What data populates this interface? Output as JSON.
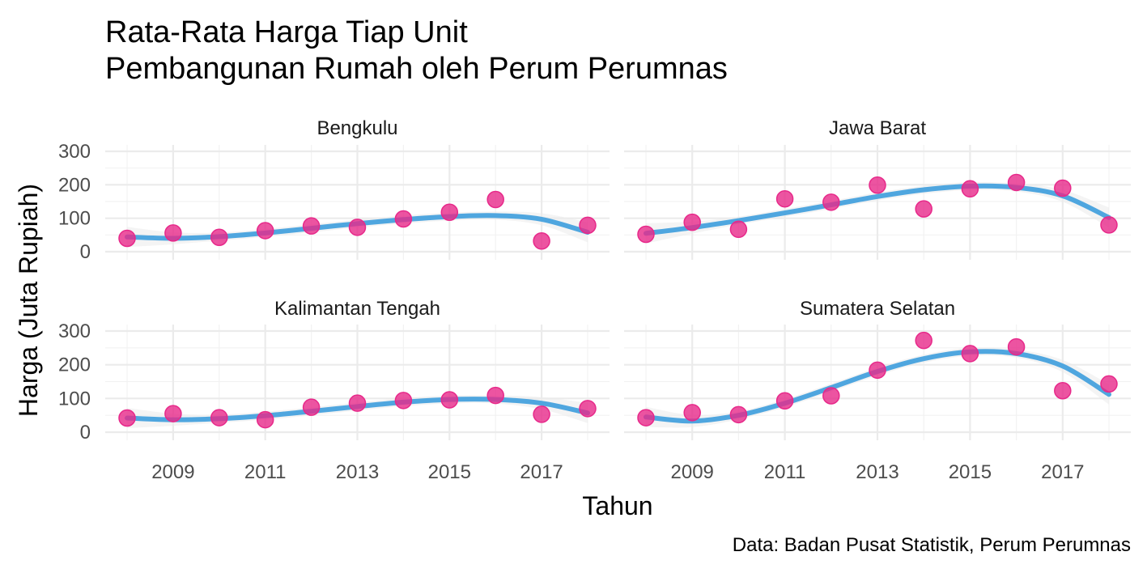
{
  "chart_data": {
    "type": "scatter",
    "title": "Rata-Rata Harga Tiap Unit",
    "subtitle": "Pembangunan Rumah oleh Perum Perumnas",
    "xlabel": "Tahun",
    "ylabel": "Harga (Juta Rupiah)",
    "caption": "Data: Badan Pusat Statistik, Perum Perumnas",
    "xlim": [
      2008,
      2018
    ],
    "ylim": [
      0,
      300
    ],
    "x_ticks": [
      "2009",
      "2011",
      "2013",
      "2015",
      "2017"
    ],
    "y_ticks": [
      "0",
      "100",
      "200",
      "300"
    ],
    "grid": true,
    "point_color": "#e7298a",
    "smooth_color": "#4fa6df",
    "ribbon_color": "#ebebeb",
    "years": [
      2008,
      2009,
      2010,
      2011,
      2012,
      2013,
      2014,
      2015,
      2016,
      2017,
      2018
    ],
    "panels": [
      {
        "name": "Bengkulu",
        "values": [
          40,
          56,
          43,
          63,
          77,
          73,
          98,
          118,
          156,
          32,
          79
        ],
        "smooth": [
          44,
          40,
          45,
          56,
          70,
          84,
          96,
          105,
          108,
          97,
          58
        ]
      },
      {
        "name": "Jawa Barat",
        "values": [
          52,
          88,
          67,
          158,
          148,
          199,
          128,
          188,
          207,
          190,
          80
        ],
        "smooth": [
          55,
          72,
          93,
          116,
          140,
          165,
          185,
          196,
          192,
          167,
          102
        ]
      },
      {
        "name": "Kalimantan Tengah",
        "values": [
          42,
          55,
          43,
          37,
          74,
          86,
          94,
          96,
          109,
          53,
          70
        ],
        "smooth": [
          42,
          37,
          40,
          49,
          62,
          76,
          89,
          97,
          97,
          86,
          57
        ]
      },
      {
        "name": "Sumatera Selatan",
        "values": [
          43,
          58,
          52,
          93,
          108,
          184,
          272,
          233,
          253,
          123,
          143
        ],
        "smooth": [
          45,
          33,
          50,
          86,
          132,
          180,
          218,
          238,
          233,
          196,
          112
        ]
      }
    ]
  }
}
